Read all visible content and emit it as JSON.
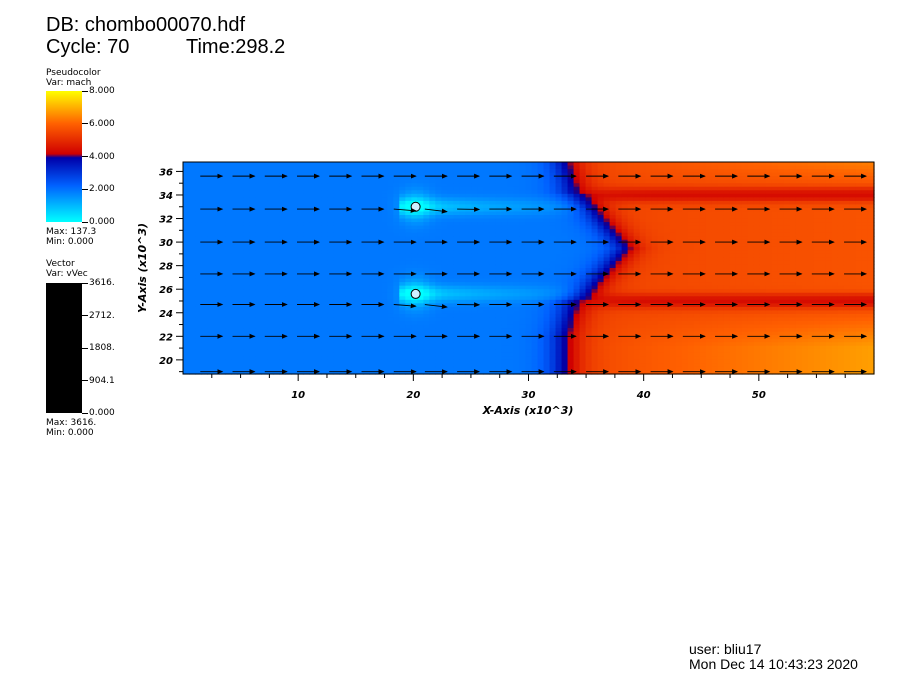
{
  "header": {
    "db_line": "DB: chombo00070.hdf",
    "cycle_line": "Cycle: 70",
    "time_line": "Time:298.2"
  },
  "legend_pseudocolor": {
    "plot_type": "Pseudocolor",
    "var_line": "Var: mach",
    "ticks": [
      "8.000",
      "6.000",
      "4.000",
      "2.000",
      "0.000"
    ],
    "max_line": "Max:  137.3",
    "min_line": "Min:  0.000",
    "colors": [
      "#00ffff",
      "#0060ff",
      "#0000aa",
      "#d00000",
      "#ff6000",
      "#ffff00"
    ]
  },
  "legend_vector": {
    "plot_type": "Vector",
    "var_line": "Var: vVec",
    "ticks": [
      "3616.",
      "2712.",
      "1808.",
      "904.1",
      "0.000"
    ],
    "max_line": "Max:  3616.",
    "min_line": "Min:  0.000",
    "color": "#000000"
  },
  "chart_data": {
    "type": "heatmap",
    "xlabel": "X-Axis (x10^3)",
    "ylabel": "Y-Axis (x10^3)",
    "xlim": [
      0,
      60
    ],
    "ylim": [
      18.8,
      36.8
    ],
    "x_ticks": [
      10,
      20,
      30,
      40,
      50
    ],
    "y_ticks": [
      20,
      22,
      24,
      26,
      28,
      30,
      32,
      34,
      36
    ],
    "x_tick_labels": [
      "10",
      "20",
      "30",
      "40",
      "50"
    ],
    "y_tick_labels": [
      "20",
      "22",
      "24",
      "26",
      "28",
      "30",
      "32",
      "34",
      "36"
    ],
    "field": "mach",
    "colormap_range": [
      0,
      8
    ],
    "obstacles": [
      {
        "x": 20.2,
        "y": 33.0
      },
      {
        "x": 20.2,
        "y": 25.6
      }
    ],
    "regions": {
      "subsonic_mach": 1.9,
      "jet_core_mach": 5.5,
      "shear_layer_centers_y": [
        34.0,
        25.0
      ],
      "shock_front_x": 33.0
    },
    "vector_rows_y": [
      19.0,
      22.0,
      24.7,
      27.3,
      30.0,
      32.8,
      35.6
    ],
    "vector_cols_x": [
      1.5,
      4.3,
      7.1,
      9.9,
      12.7,
      15.5,
      18.3,
      21.0,
      23.8,
      26.6,
      29.4,
      32.2,
      35.0,
      37.8,
      40.6,
      43.4,
      46.2,
      49.0,
      51.8,
      54.6,
      57.4
    ]
  },
  "footer": {
    "user_line": "user: bliu17",
    "date_line": "Mon Dec 14 10:43:23 2020"
  }
}
